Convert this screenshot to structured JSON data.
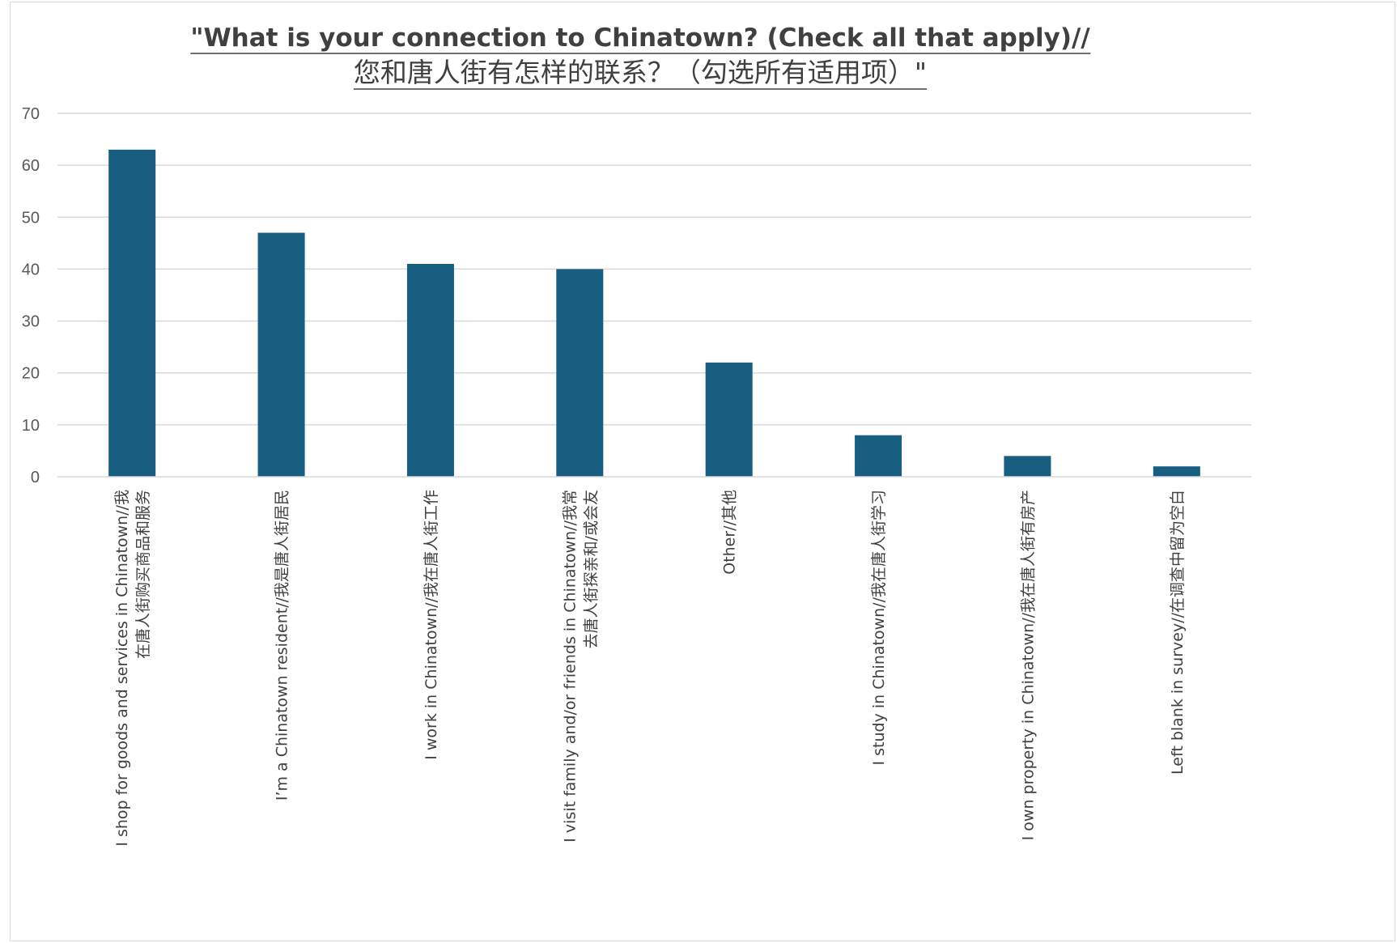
{
  "chart_data": {
    "type": "bar",
    "title": "\"What is your connection to Chinatown? (Check all that apply)//",
    "subtitle": "您和唐人街有怎样的联系？（勾选所有适用项）\"",
    "xlabel": "",
    "ylabel": "",
    "ylim": [
      0,
      70
    ],
    "yticks": [
      0,
      10,
      20,
      30,
      40,
      50,
      60,
      70
    ],
    "grid": true,
    "legend": "none",
    "bar_color": "#175e81",
    "categories": [
      [
        "I shop for goods and services in Chinatown//我",
        "在唐人街购买商品和服务"
      ],
      [
        "I’m a Chinatown resident//我是唐人街居民"
      ],
      [
        "I work in Chinatown//我在唐人街工作"
      ],
      [
        "I visit family and/or friends in Chinatown//我常",
        "去唐人街探亲和/或会友"
      ],
      [
        "Other//其他"
      ],
      [
        "I study in Chinatown//我在唐人街学习"
      ],
      [
        "I own property in Chinatown//我在唐人街有房产"
      ],
      [
        "Left blank in survey//在调查中留为空白"
      ]
    ],
    "values": [
      63,
      47,
      41,
      40,
      22,
      8,
      4,
      2
    ]
  }
}
